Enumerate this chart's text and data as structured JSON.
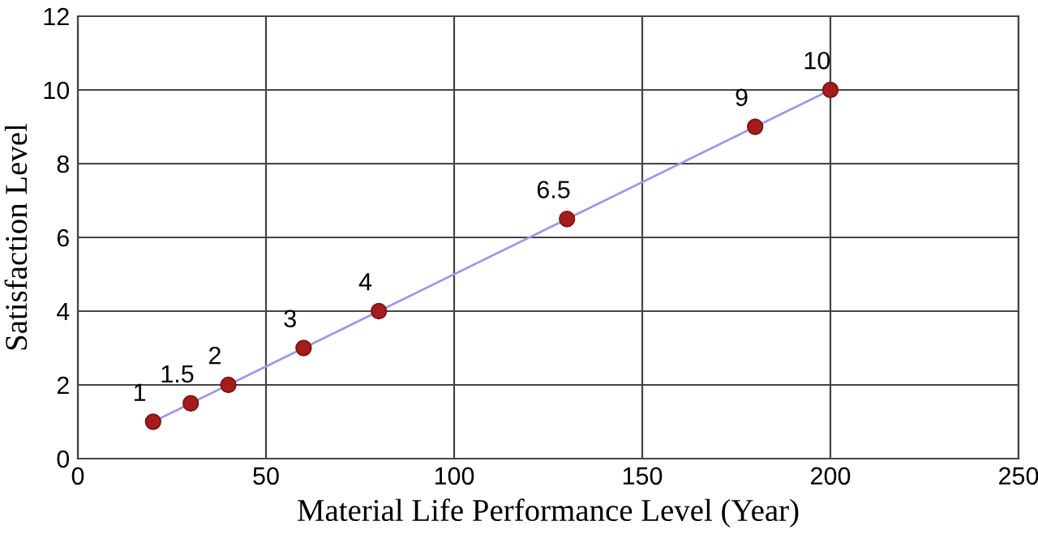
{
  "chart_data": {
    "type": "line",
    "xlabel": "Material Life Performance Level (Year)",
    "ylabel": "Satisfaction Level",
    "x": [
      20,
      30,
      40,
      60,
      80,
      130,
      180,
      200
    ],
    "series": [
      {
        "color": "#9a9ae6",
        "colors": [
          "#a51c1c",
          "#a51c1c",
          "#a51c1c",
          "#a51c1c",
          "#a51c1c",
          "#a51c1c",
          "#a51c1c",
          "#a51c1c"
        ],
        "values": [
          1,
          1.5,
          2,
          3,
          4,
          6.5,
          9,
          10
        ]
      }
    ],
    "data_labels": true,
    "xlim": [
      0,
      250
    ],
    "xticks": [
      0,
      50,
      100,
      150,
      200,
      250
    ],
    "ylim": [
      0,
      12
    ],
    "yticks": [
      0,
      2,
      4,
      6,
      8,
      10,
      12
    ],
    "grid": true,
    "marker": "circle"
  }
}
